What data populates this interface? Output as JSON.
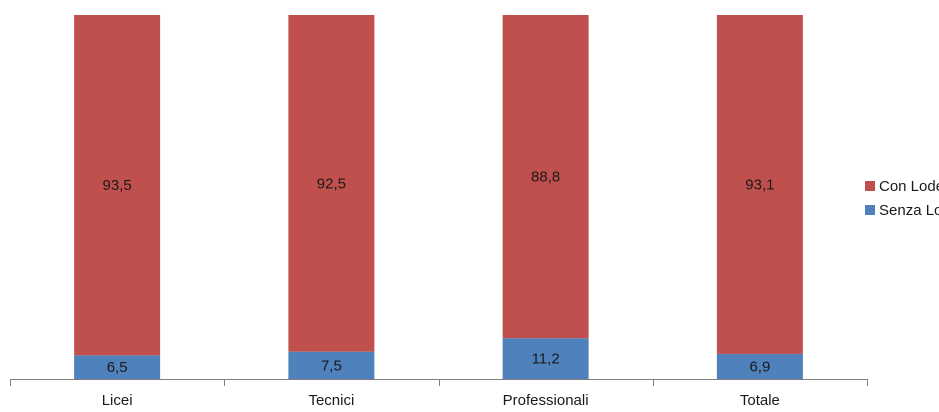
{
  "chart_data": {
    "type": "bar",
    "stacked": true,
    "title": "",
    "xlabel": "",
    "ylabel": "",
    "ylim": [
      0,
      100
    ],
    "grid": false,
    "legend_position": "right",
    "categories": [
      "Licei",
      "Tecnici",
      "Professionali",
      "Totale"
    ],
    "series": [
      {
        "name": "Senza Lode",
        "values": [
          6.5,
          7.5,
          11.2,
          6.9
        ],
        "labels": [
          "6,5",
          "7,5",
          "11,2",
          "6,9"
        ],
        "color": "#4f81bd"
      },
      {
        "name": "Con Lode",
        "values": [
          93.5,
          92.5,
          88.8,
          93.1
        ],
        "labels": [
          "93,5",
          "92,5",
          "88,8",
          "93,1"
        ],
        "color": "#c0504d"
      }
    ],
    "legend_order": [
      "Con Lode",
      "Senza Lode"
    ],
    "axis_color": "#7f7f7f"
  }
}
